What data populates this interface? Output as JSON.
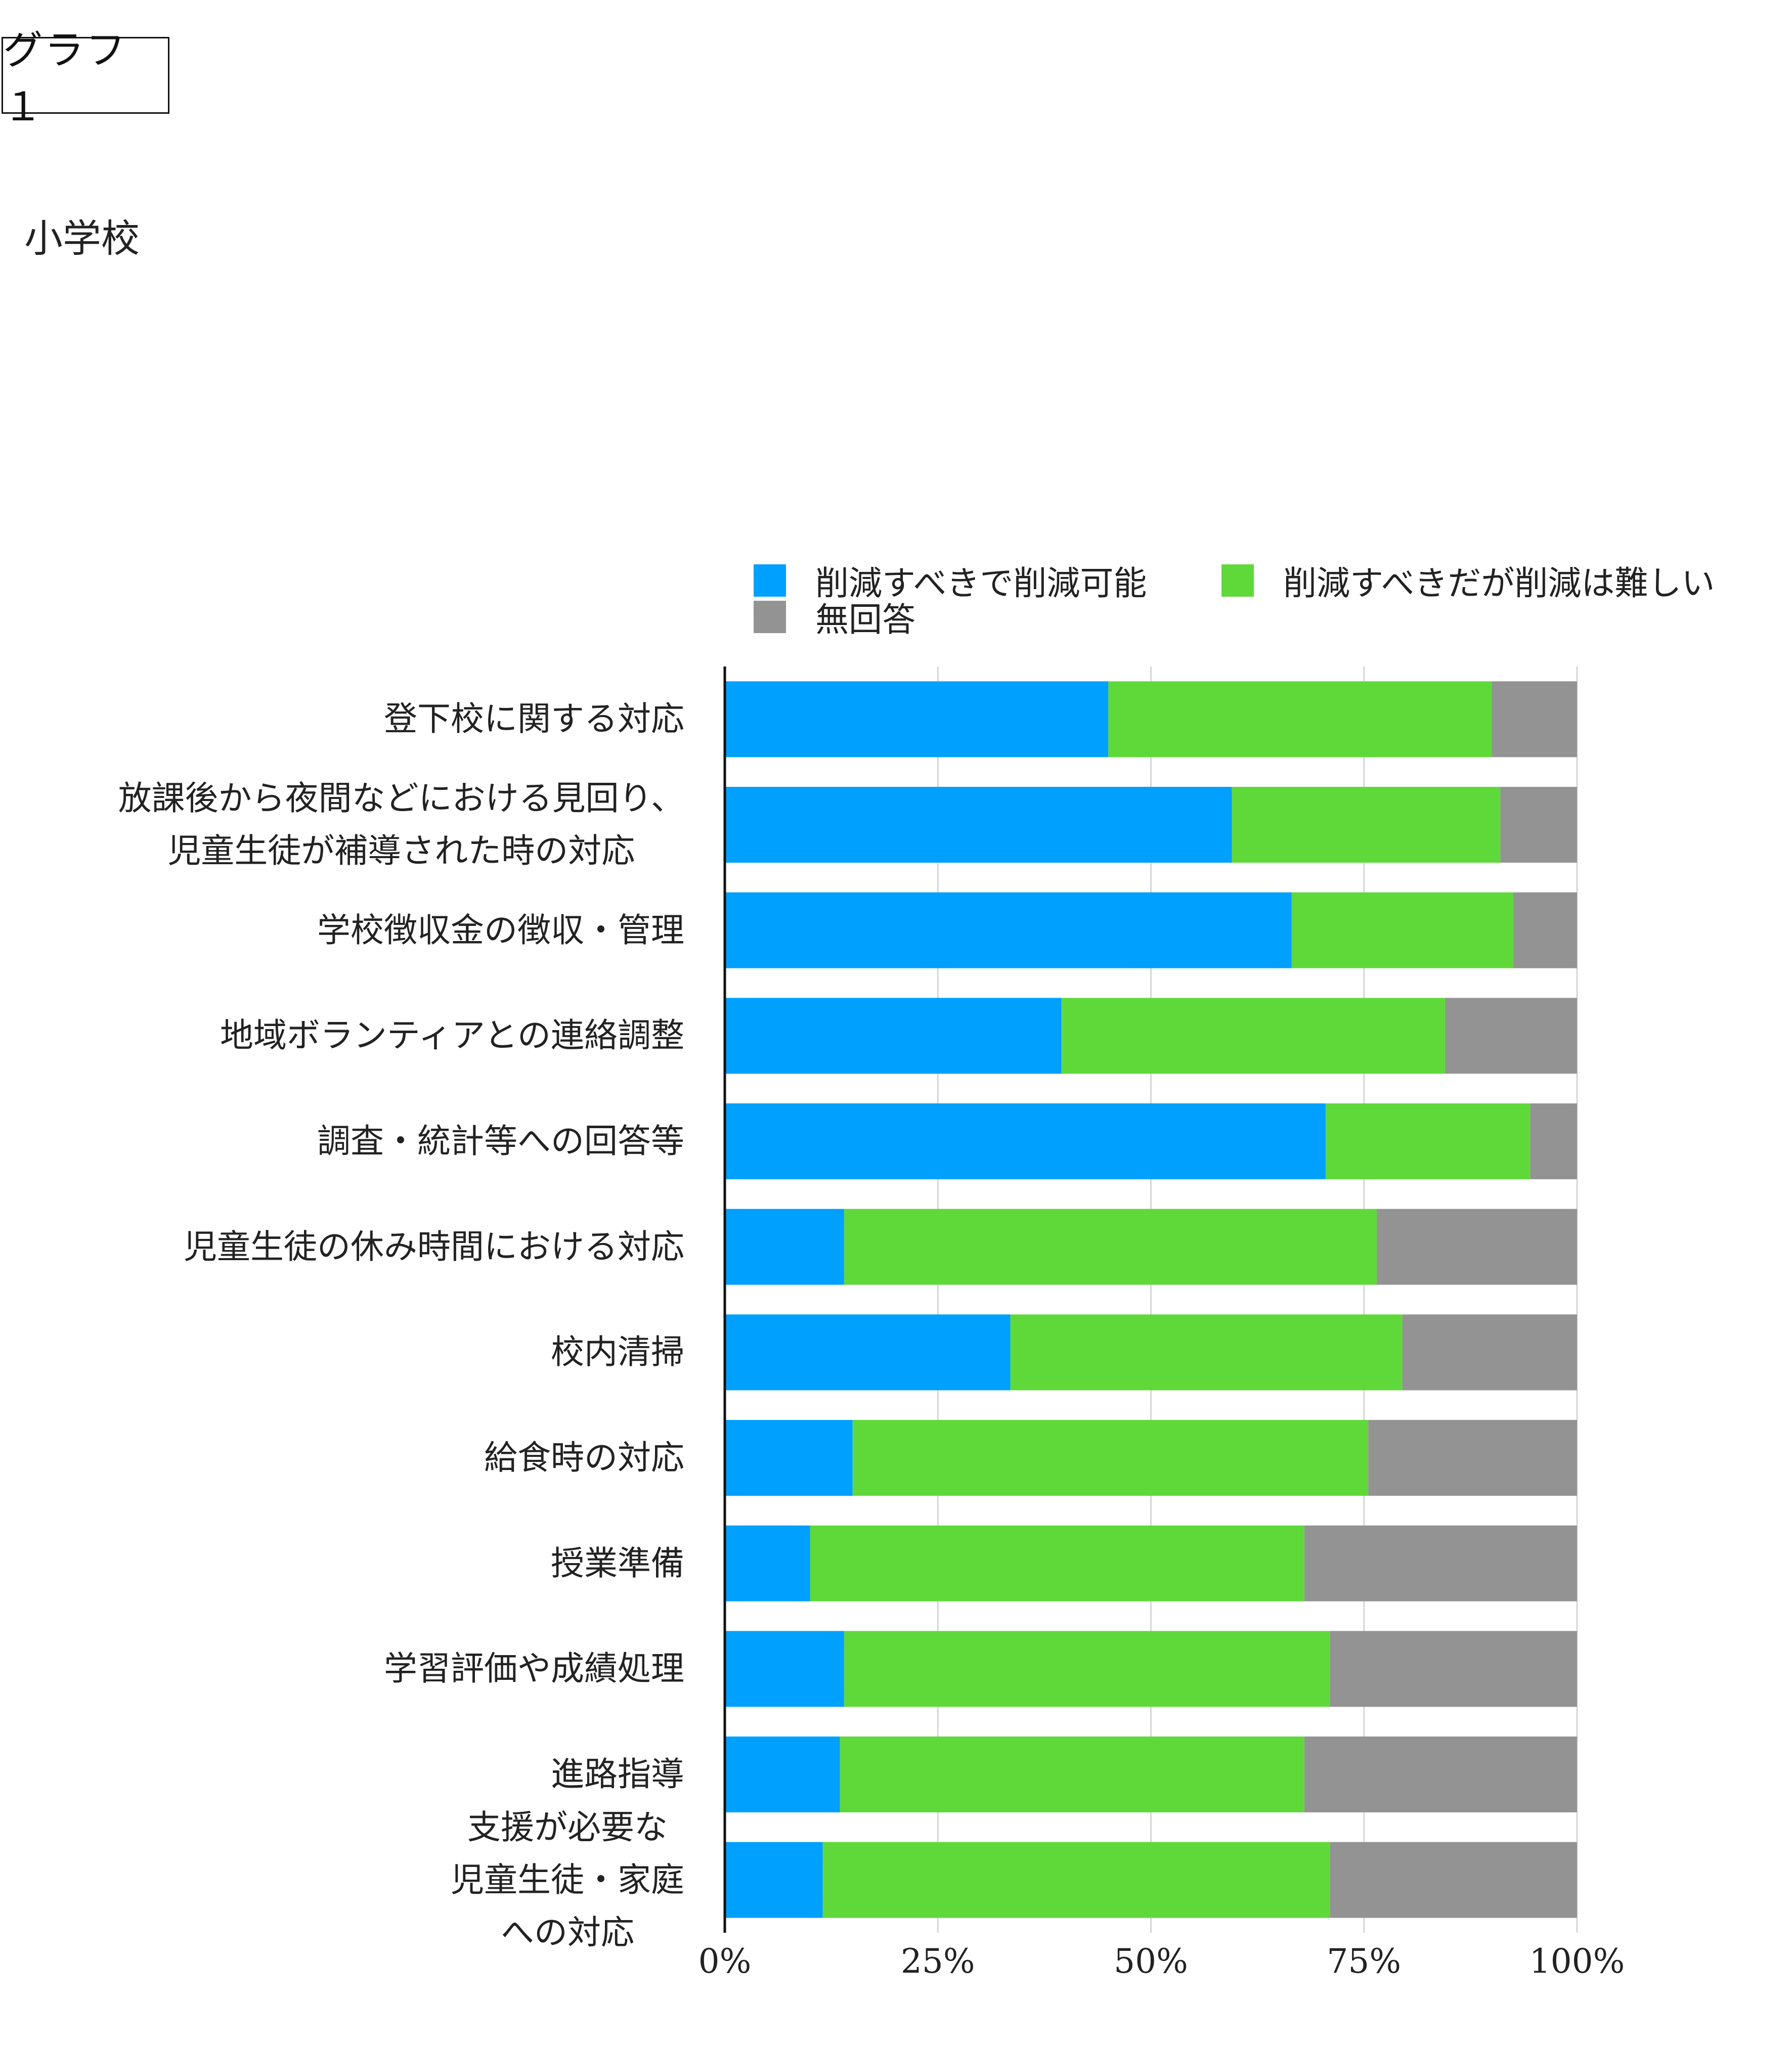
{
  "header": {
    "graph_label": "グラフ１",
    "section_title": "小学校"
  },
  "colors": {
    "reducible": "#00a0ff",
    "difficult": "#5fd93a",
    "no_answer": "#939393",
    "grid": "#d6d6d6",
    "axis": "#111111"
  },
  "chart_data": {
    "type": "bar",
    "orientation": "horizontal",
    "stacked": true,
    "title": "",
    "xlabel": "",
    "ylabel": "",
    "xlim": [
      0,
      100
    ],
    "x_ticks": [
      "0%",
      "25%",
      "50%",
      "75%",
      "100%"
    ],
    "grid": true,
    "legend_position": "top",
    "categories": [
      "登下校に関する対応",
      "放課後から夜間などにおける見回り、\n児童生徒が補導された時の対応",
      "学校徴収金の徴収・管理",
      "地域ボランティアとの連絡調整",
      "調査・統計等への回答等",
      "児童生徒の休み時間における対応",
      "校内清掃",
      "給食時の対応",
      "授業準備",
      "学習評価や成績処理",
      "進路指導",
      "支援が必要な\n児童生徒・家庭\nへの対応"
    ],
    "series": [
      {
        "name": "削減すべきで削減可能",
        "color": "#00a0ff",
        "values": [
          45,
          59.5,
          66.5,
          39.5,
          70.5,
          14,
          33.5,
          15,
          10,
          14,
          13.5,
          11.5
        ]
      },
      {
        "name": "削減すべきだが削減は難しい",
        "color": "#5fd93a",
        "values": [
          45,
          31.5,
          26,
          45,
          24,
          62.5,
          46,
          60.5,
          58,
          57,
          54.5,
          59.5
        ]
      },
      {
        "name": "無回答",
        "color": "#939393",
        "values": [
          10,
          9,
          7.5,
          15.5,
          5.5,
          23.5,
          20.5,
          24.5,
          32,
          29,
          32,
          29
        ]
      }
    ]
  }
}
